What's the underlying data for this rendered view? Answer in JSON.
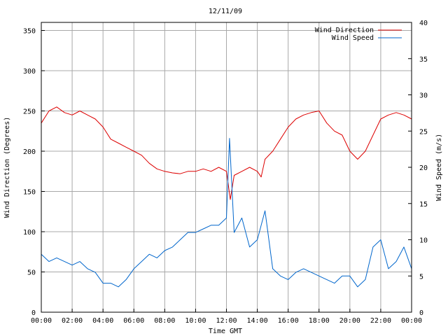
{
  "chart_data": {
    "type": "line",
    "title": "12/11/09",
    "xlabel": "Time GMT",
    "ylabel_left": "Wind Direction (Degrees)",
    "ylabel_right": "Wind Speed (m/s)",
    "x_ticks": [
      "00:00",
      "02:00",
      "04:00",
      "06:00",
      "08:00",
      "10:00",
      "12:00",
      "14:00",
      "16:00",
      "18:00",
      "20:00",
      "22:00",
      "00:00"
    ],
    "y_left_ticks": [
      0,
      50,
      100,
      150,
      200,
      250,
      300,
      350
    ],
    "y_left_lim": [
      0,
      360
    ],
    "y_right_ticks": [
      0,
      5,
      10,
      15,
      20,
      25,
      30,
      35,
      40
    ],
    "y_right_lim": [
      0,
      40
    ],
    "x_lim_hours": [
      0,
      24
    ],
    "grid": true,
    "legend_position": "top-right",
    "colors": {
      "direction": "#dd0000",
      "speed": "#0066cc",
      "grid": "#a8a8a8"
    },
    "series": [
      {
        "name": "Wind Direction",
        "axis": "left",
        "x_hours": [
          0,
          0.5,
          1,
          1.5,
          2,
          2.5,
          3,
          3.5,
          4,
          4.5,
          5,
          5.5,
          6,
          6.5,
          7,
          7.5,
          8,
          8.5,
          9,
          9.5,
          10,
          10.5,
          11,
          11.5,
          12,
          12.25,
          12.5,
          13,
          13.5,
          14,
          14.25,
          14.5,
          15,
          15.5,
          16,
          16.5,
          17,
          17.5,
          18,
          18.5,
          19,
          19.5,
          20,
          20.5,
          21,
          21.5,
          22,
          22.5,
          23,
          23.5,
          24
        ],
        "values": [
          235,
          250,
          255,
          248,
          245,
          250,
          245,
          240,
          230,
          215,
          210,
          205,
          200,
          195,
          185,
          178,
          175,
          173,
          172,
          175,
          175,
          178,
          175,
          180,
          175,
          140,
          170,
          175,
          180,
          175,
          168,
          190,
          200,
          215,
          230,
          240,
          245,
          248,
          250,
          235,
          225,
          220,
          200,
          190,
          200,
          220,
          240,
          245,
          248,
          245,
          240
        ]
      },
      {
        "name": "Wind Speed",
        "axis": "right",
        "x_hours": [
          0,
          0.5,
          1,
          1.5,
          2,
          2.5,
          3,
          3.5,
          4,
          4.5,
          5,
          5.5,
          6,
          6.5,
          7,
          7.5,
          8,
          8.5,
          9,
          9.5,
          10,
          10.5,
          11,
          11.5,
          12,
          12.2,
          12.5,
          13,
          13.5,
          14,
          14.5,
          15,
          15.5,
          16,
          16.5,
          17,
          17.5,
          18,
          18.5,
          19,
          19.5,
          20,
          20.5,
          21,
          21.5,
          22,
          22.5,
          23,
          23.5,
          24
        ],
        "values": [
          8,
          7,
          7.5,
          7,
          6.5,
          7,
          6,
          5.5,
          4,
          4,
          3.5,
          4.5,
          6,
          7,
          8,
          7.5,
          8.5,
          9,
          10,
          11,
          11,
          11.5,
          12,
          12,
          13,
          24,
          11,
          13,
          9,
          10,
          14,
          6,
          5,
          4.5,
          5.5,
          6,
          5.5,
          5,
          4.5,
          4,
          5,
          5,
          3.5,
          4.5,
          9,
          10,
          6,
          7,
          9,
          6
        ]
      }
    ]
  }
}
